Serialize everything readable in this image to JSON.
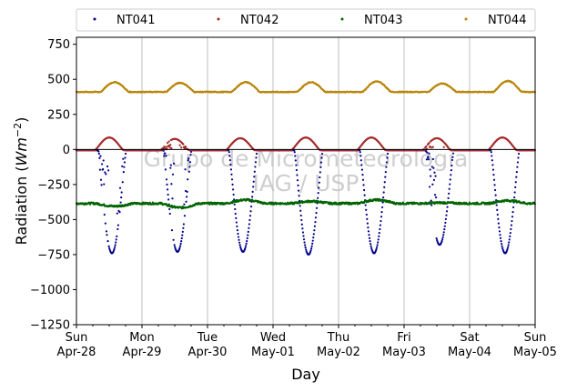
{
  "chart_data": {
    "type": "scatter",
    "ylabel": "Radiation (Wm−2)",
    "ylabel_parts": {
      "main": "Radiation (",
      "var": "Wm",
      "sup": "−2",
      "close": ")"
    },
    "xlabel": "Day",
    "ylim": [
      -1250,
      800
    ],
    "yticks": [
      {
        "value": 750,
        "label": "750"
      },
      {
        "value": 500,
        "label": "500"
      },
      {
        "value": 250,
        "label": "250"
      },
      {
        "value": 0,
        "label": "0"
      },
      {
        "value": -250,
        "label": "−250"
      },
      {
        "value": -500,
        "label": "−500"
      },
      {
        "value": -750,
        "label": "−750"
      },
      {
        "value": -1000,
        "label": "−1000"
      },
      {
        "value": -1250,
        "label": "−1250"
      }
    ],
    "xrange": [
      "2024-04-28",
      "2024-05-05"
    ],
    "xticks": [
      {
        "day": "Sun",
        "date": "Apr-28"
      },
      {
        "day": "Mon",
        "date": "Apr-29"
      },
      {
        "day": "Tue",
        "date": "Apr-30"
      },
      {
        "day": "Wed",
        "date": "May-01"
      },
      {
        "day": "Thu",
        "date": "May-02"
      },
      {
        "day": "Fri",
        "date": "May-03"
      },
      {
        "day": "Sat",
        "date": "May-04"
      },
      {
        "day": "Sun",
        "date": "May-05"
      }
    ],
    "grid": "vertical",
    "zero_line": true,
    "legend_position": "top",
    "series": [
      {
        "name": "NT041",
        "color": "#00008b",
        "night": -5,
        "midday": [
          -740,
          -730,
          -730,
          -750,
          -740,
          -680,
          -740
        ],
        "noon_hour": 13,
        "cloudy_days": [
          0,
          1,
          5
        ]
      },
      {
        "name": "NT042",
        "color": "#a52a2a",
        "night": -5,
        "midday": [
          85,
          75,
          80,
          85,
          85,
          80,
          85
        ],
        "noon_hour": 12,
        "cloudy_days": [
          1,
          5
        ]
      },
      {
        "name": "NT043",
        "color": "#006400",
        "night": -385,
        "midday": [
          -405,
          -415,
          -360,
          -370,
          -360,
          -380,
          -365
        ],
        "noon_hour": 14,
        "cloudy_days": []
      },
      {
        "name": "NT044",
        "color": "#b8860b",
        "night": 410,
        "midday": [
          480,
          475,
          480,
          480,
          485,
          470,
          488
        ],
        "noon_hour": 14,
        "cloudy_days": []
      }
    ]
  },
  "watermark": {
    "line1": "Grupo de Micrometeorologia",
    "line2": "IAG / USP"
  }
}
